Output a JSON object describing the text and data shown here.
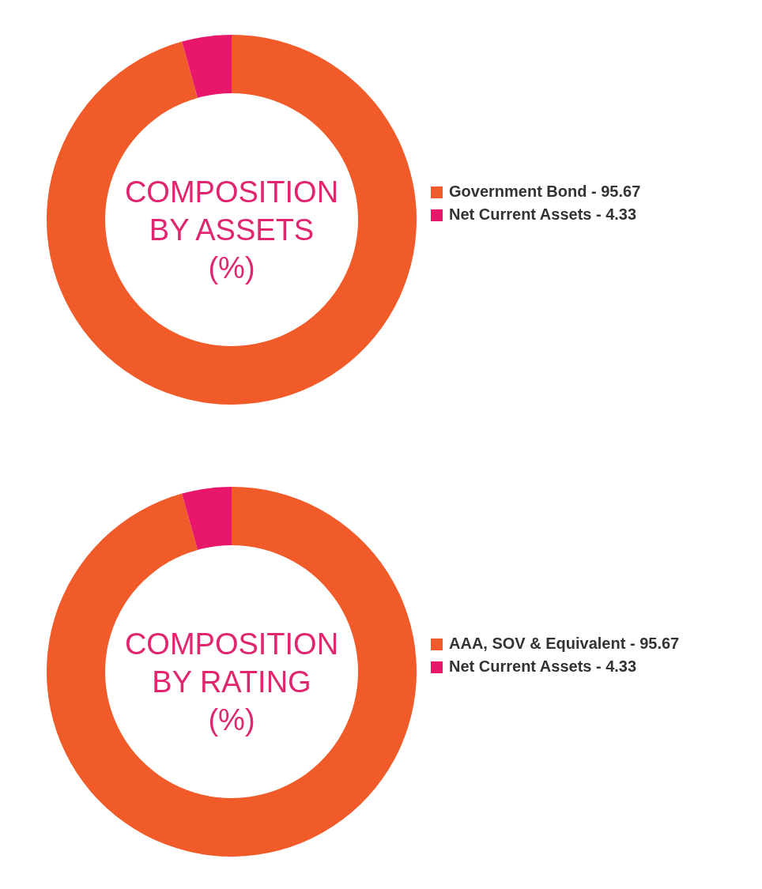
{
  "chart_data": [
    {
      "type": "donut",
      "title": "COMPOSITION\nBY ASSETS\n(%)",
      "categories": [
        "Government Bond - 95.67",
        "Net Current Assets - 4.33"
      ],
      "values": [
        95.67,
        4.33
      ],
      "colors": [
        "#f15a29",
        "#e8176b"
      ],
      "legend": "right"
    },
    {
      "type": "donut",
      "title": "COMPOSITION\nBY RATING\n(%)",
      "categories": [
        "AAA, SOV & Equivalent - 95.67",
        "Net Current Assets - 4.33"
      ],
      "values": [
        95.67,
        4.33
      ],
      "colors": [
        "#f15a29",
        "#e8176b"
      ],
      "legend": "right"
    }
  ]
}
